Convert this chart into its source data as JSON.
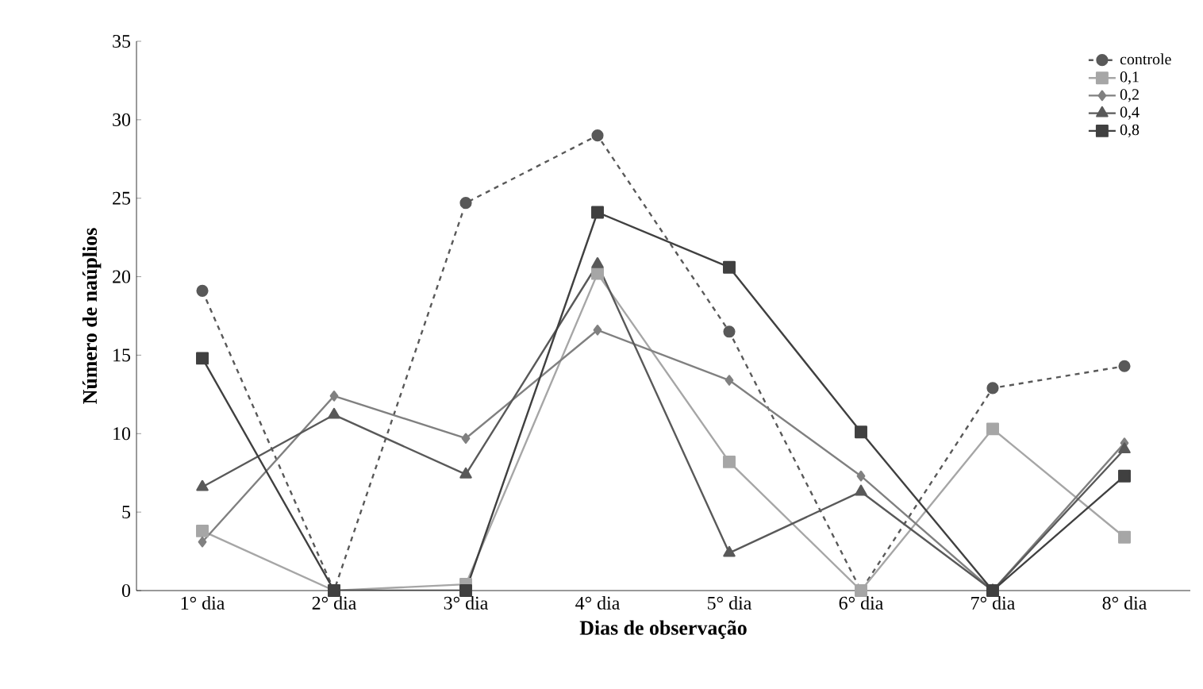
{
  "chart_data": {
    "type": "line",
    "xlabel": "Dias de observação",
    "ylabel": "Número de naúplios",
    "categories": [
      "1° dia",
      "2° dia",
      "3° dia",
      "4° dia",
      "5° dia",
      "6° dia",
      "7° dia",
      "8° dia"
    ],
    "ylim": [
      0,
      35
    ],
    "yticks": [
      0,
      5,
      10,
      15,
      20,
      25,
      30,
      35
    ],
    "grid": false,
    "legend": "top right",
    "series": [
      {
        "name": "controle",
        "color": "#595959",
        "marker": "circle",
        "line_style": "dashed",
        "values": [
          19.1,
          0,
          24.7,
          29.0,
          16.5,
          0,
          12.9,
          14.3
        ]
      },
      {
        "name": "0,1",
        "color": "#a6a6a6",
        "marker": "square",
        "line_style": "solid",
        "values": [
          3.8,
          0,
          0.4,
          20.2,
          8.2,
          0,
          10.3,
          3.4
        ]
      },
      {
        "name": "0,2",
        "color": "#808080",
        "marker": "diamond",
        "line_style": "solid",
        "values": [
          3.1,
          12.4,
          9.7,
          16.6,
          13.4,
          7.3,
          0,
          9.4
        ]
      },
      {
        "name": "0,4",
        "color": "#595959",
        "marker": "triangle",
        "line_style": "solid",
        "values": [
          6.6,
          11.2,
          7.4,
          20.8,
          2.4,
          6.3,
          0,
          9.0
        ]
      },
      {
        "name": "0,8",
        "color": "#404040",
        "marker": "square",
        "line_style": "solid",
        "values": [
          14.8,
          0,
          0,
          24.1,
          20.6,
          10.1,
          0,
          7.3
        ]
      }
    ]
  }
}
